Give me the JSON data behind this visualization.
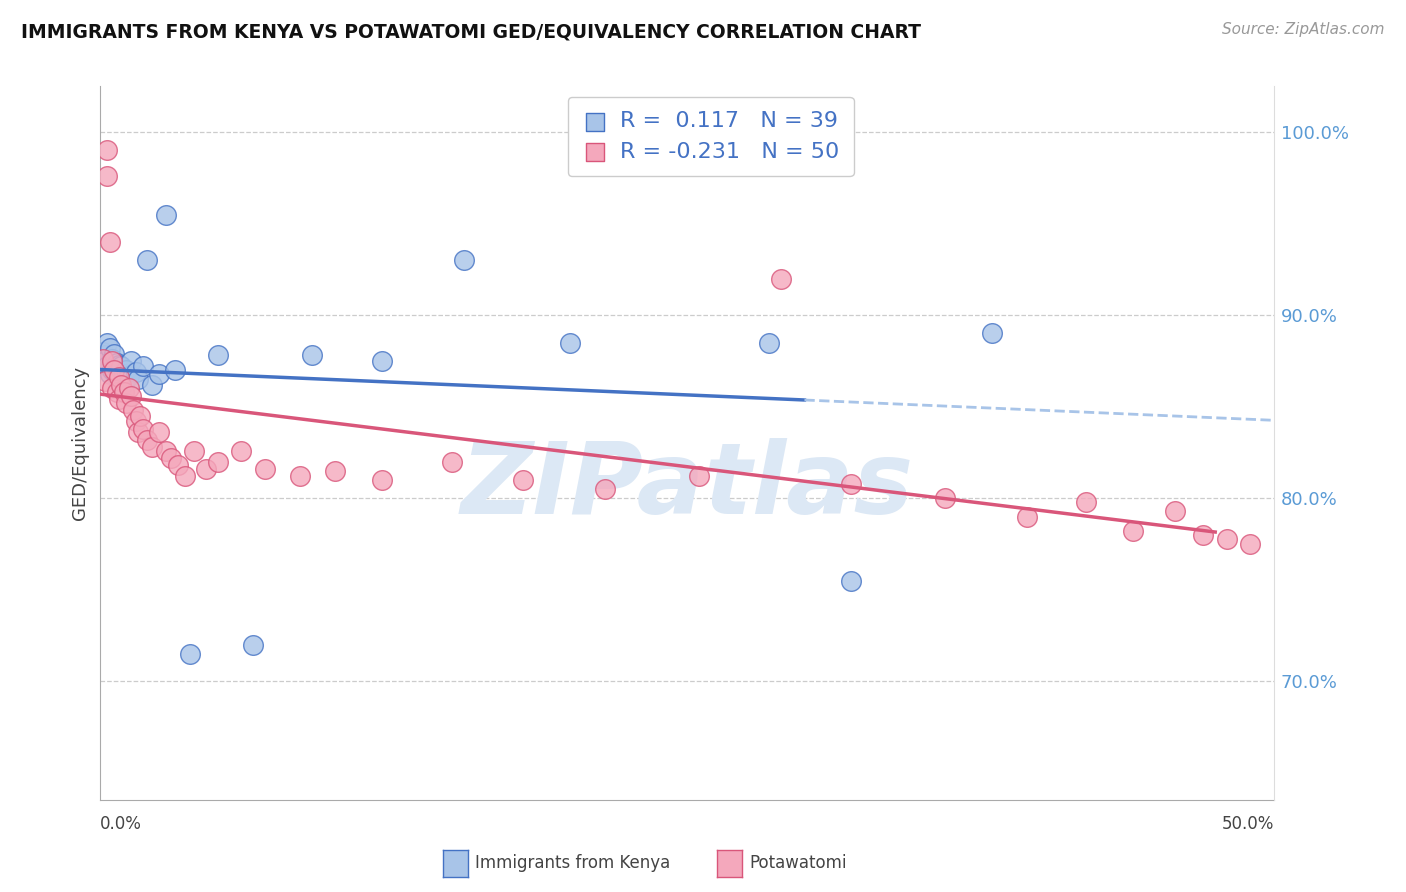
{
  "title": "IMMIGRANTS FROM KENYA VS POTAWATOMI GED/EQUIVALENCY CORRELATION CHART",
  "source": "Source: ZipAtlas.com",
  "ylabel": "GED/Equivalency",
  "yticks": [
    0.7,
    0.8,
    0.9,
    1.0
  ],
  "ytick_labels": [
    "70.0%",
    "80.0%",
    "90.0%",
    "100.0%"
  ],
  "xmin": 0.0,
  "xmax": 0.5,
  "ymin": 0.635,
  "ymax": 1.025,
  "color_kenya": "#a8c4e8",
  "color_potawatomi": "#f4a8bc",
  "color_kenya_line": "#4472c4",
  "color_potawatomi_line": "#d9567a",
  "color_dashed": "#a8c4e8",
  "kenya_x": [
    0.001,
    0.002,
    0.002,
    0.003,
    0.003,
    0.004,
    0.004,
    0.005,
    0.005,
    0.006,
    0.006,
    0.007,
    0.007,
    0.008,
    0.008,
    0.009,
    0.01,
    0.01,
    0.011,
    0.012,
    0.013,
    0.015,
    0.016,
    0.018,
    0.02,
    0.022,
    0.025,
    0.028,
    0.032,
    0.038,
    0.05,
    0.065,
    0.09,
    0.12,
    0.155,
    0.2,
    0.285,
    0.32,
    0.38
  ],
  "kenya_y": [
    0.88,
    0.878,
    0.875,
    0.885,
    0.872,
    0.882,
    0.868,
    0.876,
    0.87,
    0.879,
    0.871,
    0.874,
    0.866,
    0.873,
    0.865,
    0.872,
    0.868,
    0.863,
    0.87,
    0.867,
    0.875,
    0.869,
    0.865,
    0.872,
    0.93,
    0.862,
    0.868,
    0.955,
    0.87,
    0.715,
    0.878,
    0.72,
    0.878,
    0.875,
    0.93,
    0.885,
    0.885,
    0.755,
    0.89
  ],
  "potawatomi_x": [
    0.001,
    0.002,
    0.003,
    0.003,
    0.004,
    0.005,
    0.005,
    0.006,
    0.007,
    0.008,
    0.008,
    0.009,
    0.01,
    0.011,
    0.012,
    0.013,
    0.014,
    0.015,
    0.016,
    0.017,
    0.018,
    0.02,
    0.022,
    0.025,
    0.028,
    0.03,
    0.033,
    0.036,
    0.04,
    0.045,
    0.05,
    0.06,
    0.07,
    0.085,
    0.1,
    0.12,
    0.15,
    0.18,
    0.215,
    0.255,
    0.29,
    0.32,
    0.36,
    0.395,
    0.42,
    0.44,
    0.458,
    0.47,
    0.48,
    0.49
  ],
  "potawatomi_y": [
    0.876,
    0.864,
    0.976,
    0.99,
    0.94,
    0.875,
    0.86,
    0.87,
    0.858,
    0.866,
    0.854,
    0.862,
    0.858,
    0.852,
    0.86,
    0.856,
    0.848,
    0.842,
    0.836,
    0.845,
    0.838,
    0.832,
    0.828,
    0.836,
    0.826,
    0.822,
    0.818,
    0.812,
    0.826,
    0.816,
    0.82,
    0.826,
    0.816,
    0.812,
    0.815,
    0.81,
    0.82,
    0.81,
    0.805,
    0.812,
    0.92,
    0.808,
    0.8,
    0.79,
    0.798,
    0.782,
    0.793,
    0.78,
    0.778,
    0.775
  ],
  "watermark": "ZIPatlas",
  "watermark_color": "#dce8f5",
  "background_color": "#ffffff"
}
